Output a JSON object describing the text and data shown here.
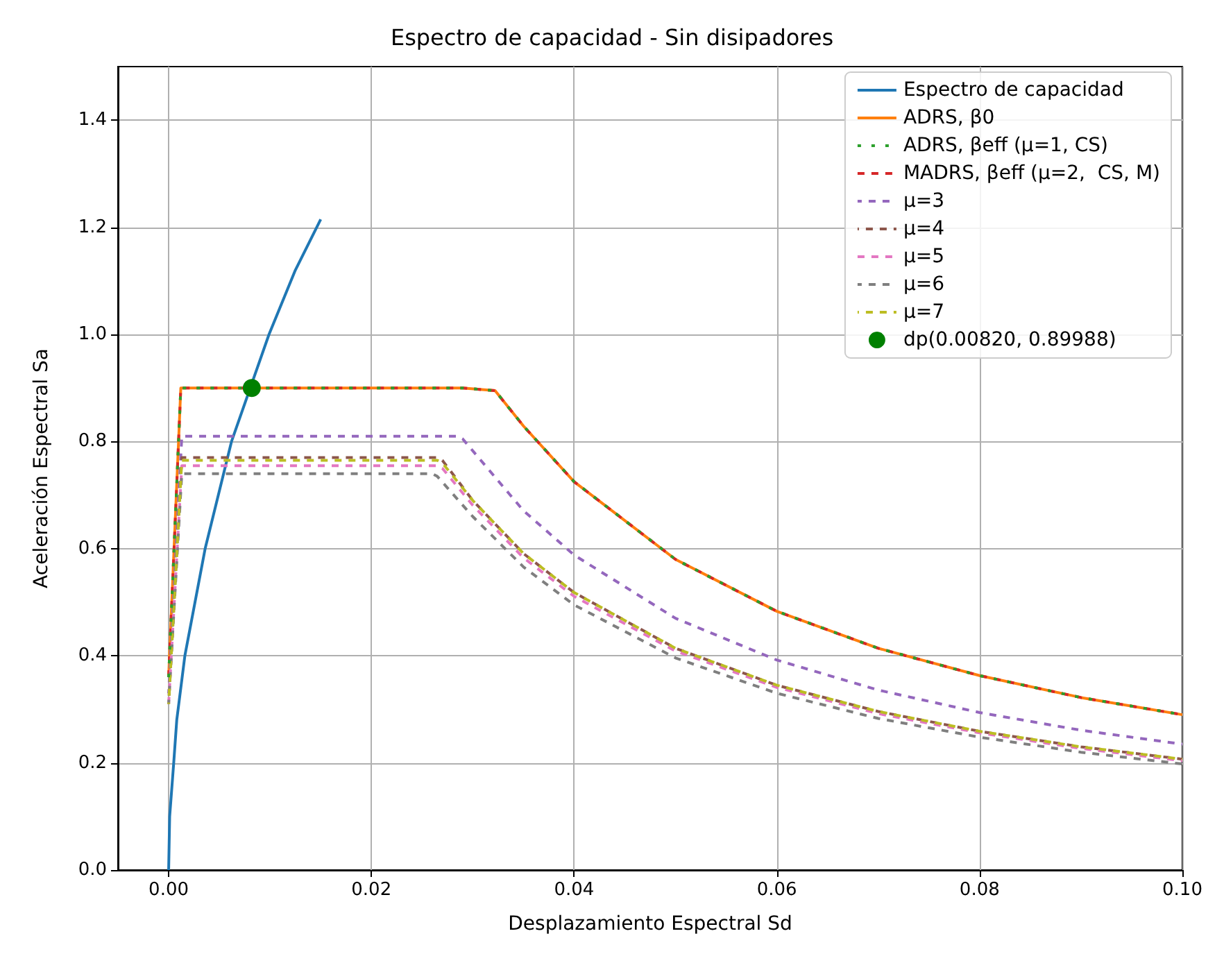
{
  "chart_data": {
    "type": "line",
    "title": "Espectro de capacidad - Sin disipadores",
    "xlabel": "Desplazamiento Espectral Sd",
    "ylabel": "Aceleración Espectral Sa",
    "xlim": [
      -0.005,
      0.1
    ],
    "ylim": [
      0,
      1.5
    ],
    "xticks": [
      {
        "value": 0,
        "label": "0.00"
      },
      {
        "value": 0.02,
        "label": "0.02"
      },
      {
        "value": 0.04,
        "label": "0.04"
      },
      {
        "value": 0.06,
        "label": "0.06"
      },
      {
        "value": 0.08,
        "label": "0.08"
      },
      {
        "value": 0.1,
        "label": "0.10"
      }
    ],
    "yticks": [
      {
        "value": 0,
        "label": "0.0"
      },
      {
        "value": 0.2,
        "label": "0.2"
      },
      {
        "value": 0.4,
        "label": "0.4"
      },
      {
        "value": 0.6,
        "label": "0.6"
      },
      {
        "value": 0.8,
        "label": "0.8"
      },
      {
        "value": 1.0,
        "label": "1.0"
      },
      {
        "value": 1.2,
        "label": "1.2"
      },
      {
        "value": 1.4,
        "label": "1.4"
      }
    ],
    "grid": true,
    "legend": "top right",
    "marker": "none",
    "series": [
      {
        "name": "Espectro de capacidad",
        "color": "#1f77b4",
        "line_style": "solid",
        "x": [
          0,
          0.0001,
          0.0005,
          0.0008,
          0.0016,
          0.0036,
          0.0062,
          0.0099,
          0.0125,
          0.015
        ],
        "values": [
          0,
          0.1,
          0.2,
          0.28,
          0.4,
          0.6,
          0.8,
          1.0,
          1.12,
          1.215
        ]
      },
      {
        "name": "ADRS, β0",
        "color": "#ff7f0e",
        "line_style": "solid",
        "x": [
          0,
          0.0012,
          0.029,
          0.0322,
          0.035,
          0.04,
          0.05,
          0.06,
          0.07,
          0.08,
          0.09,
          0.1
        ],
        "values": [
          0.36,
          0.9,
          0.9,
          0.895,
          0.829,
          0.725,
          0.58,
          0.483,
          0.414,
          0.363,
          0.322,
          0.29
        ]
      },
      {
        "name": "ADRS, βeff (μ=1, CS)",
        "color": "#2ca02c",
        "line_style": "dashed",
        "x": [
          0,
          0.0012,
          0.029,
          0.0322,
          0.035,
          0.04,
          0.05,
          0.06,
          0.07,
          0.08,
          0.09,
          0.1
        ],
        "values": [
          0.36,
          0.9,
          0.9,
          0.895,
          0.829,
          0.725,
          0.58,
          0.483,
          0.414,
          0.363,
          0.322,
          0.29
        ]
      },
      {
        "name": "MADRS, βeff (μ=2,  CS, M)",
        "color": "#d62728",
        "line_style": "dashed",
        "x": [
          0,
          0.0012,
          0.029,
          0.0322,
          0.035,
          0.04,
          0.05,
          0.06,
          0.07,
          0.08,
          0.09,
          0.1
        ],
        "values": [
          0.36,
          0.9,
          0.9,
          0.895,
          0.829,
          0.725,
          0.58,
          0.483,
          0.414,
          0.363,
          0.322,
          0.29
        ]
      },
      {
        "name": "μ=3",
        "color": "#9467bd",
        "line_style": "dashed",
        "x": [
          0,
          0.0013,
          0.0285,
          0.029,
          0.035,
          0.04,
          0.05,
          0.06,
          0.07,
          0.08,
          0.09,
          0.1
        ],
        "values": [
          0.33,
          0.81,
          0.81,
          0.805,
          0.671,
          0.588,
          0.47,
          0.392,
          0.336,
          0.294,
          0.261,
          0.235
        ]
      },
      {
        "name": "μ=4",
        "color": "#8c564b",
        "line_style": "dashed",
        "x": [
          0,
          0.0013,
          0.0265,
          0.027,
          0.03,
          0.035,
          0.04,
          0.05,
          0.06,
          0.07,
          0.08,
          0.09,
          0.1
        ],
        "values": [
          0.31,
          0.77,
          0.77,
          0.765,
          0.69,
          0.591,
          0.518,
          0.414,
          0.345,
          0.296,
          0.259,
          0.23,
          0.207
        ]
      },
      {
        "name": "μ=5",
        "color": "#e377c2",
        "line_style": "dashed",
        "x": [
          0,
          0.0013,
          0.0265,
          0.027,
          0.03,
          0.035,
          0.04,
          0.05,
          0.06,
          0.07,
          0.08,
          0.09,
          0.1
        ],
        "values": [
          0.31,
          0.755,
          0.755,
          0.75,
          0.681,
          0.583,
          0.511,
          0.409,
          0.341,
          0.292,
          0.256,
          0.227,
          0.204
        ]
      },
      {
        "name": "μ=6",
        "color": "#7f7f7f",
        "line_style": "dashed",
        "x": [
          0,
          0.0013,
          0.026,
          0.0265,
          0.03,
          0.035,
          0.04,
          0.05,
          0.06,
          0.07,
          0.08,
          0.09,
          0.1
        ],
        "values": [
          0.31,
          0.74,
          0.74,
          0.735,
          0.66,
          0.566,
          0.495,
          0.396,
          0.33,
          0.283,
          0.248,
          0.22,
          0.198
        ]
      },
      {
        "name": "μ=7",
        "color": "#bcbd22",
        "line_style": "dashed",
        "x": [
          0,
          0.0013,
          0.0265,
          0.027,
          0.03,
          0.035,
          0.04,
          0.05,
          0.06,
          0.07,
          0.08,
          0.09,
          0.1
        ],
        "values": [
          0.31,
          0.765,
          0.765,
          0.76,
          0.69,
          0.591,
          0.518,
          0.414,
          0.345,
          0.296,
          0.259,
          0.23,
          0.207
        ]
      },
      {
        "name": "dp(0.00820, 0.89988)",
        "type": "scatter",
        "marker": "circle",
        "color": "#008000",
        "x": [
          0.0082
        ],
        "values": [
          0.9
        ]
      }
    ]
  }
}
